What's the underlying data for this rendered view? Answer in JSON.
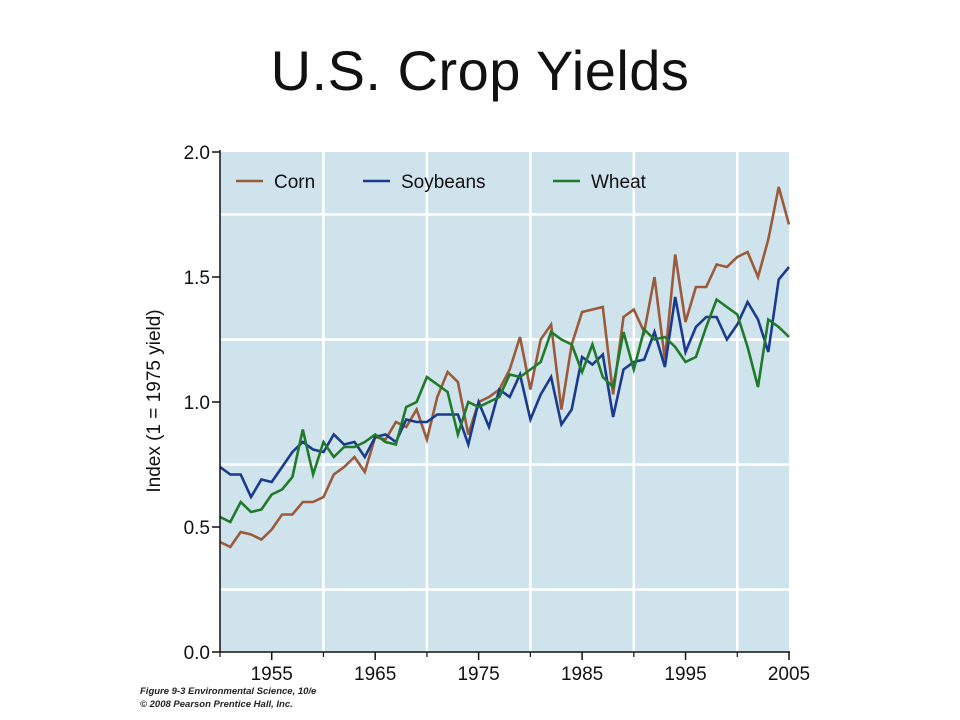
{
  "slide": {
    "title": "U.S. Crop Yields",
    "caption_line1": "Figure 9-3  Environmental Science, 10/e",
    "caption_line2": "© 2008 Pearson Prentice Hall, Inc."
  },
  "colors": {
    "plot_background": "#cfe3ec",
    "grid": "#ffffff",
    "corn": "#9b5a3a",
    "soybeans": "#1a3a8c",
    "wheat": "#1f7a2a"
  },
  "chart_data": {
    "type": "line",
    "title": "",
    "xlabel": "",
    "ylabel": "Index (1 = 1975 yield)",
    "xlim": [
      1950,
      2005
    ],
    "ylim": [
      0,
      2.0
    ],
    "xticks": [
      1955,
      1965,
      1975,
      1985,
      1995,
      2005
    ],
    "xtick_labels": [
      "1955",
      "1965",
      "1975",
      "1985",
      "1995",
      "2005"
    ],
    "yticks": [
      0,
      0.5,
      1.0,
      1.5,
      2.0
    ],
    "ytick_labels": [
      "0.0",
      "0.5",
      "1.0",
      "1.5",
      "2.0"
    ],
    "grid": true,
    "legend_position": "top",
    "x": [
      1950,
      1951,
      1952,
      1953,
      1954,
      1955,
      1956,
      1957,
      1958,
      1959,
      1960,
      1961,
      1962,
      1963,
      1964,
      1965,
      1966,
      1967,
      1968,
      1969,
      1970,
      1971,
      1972,
      1973,
      1974,
      1975,
      1976,
      1977,
      1978,
      1979,
      1980,
      1981,
      1982,
      1983,
      1984,
      1985,
      1986,
      1987,
      1988,
      1989,
      1990,
      1991,
      1992,
      1993,
      1994,
      1995,
      1996,
      1997,
      1998,
      1999,
      2000,
      2001,
      2002,
      2003,
      2004,
      2005
    ],
    "series": [
      {
        "name": "Corn",
        "values": [
          0.44,
          0.42,
          0.48,
          0.47,
          0.45,
          0.49,
          0.55,
          0.55,
          0.6,
          0.6,
          0.62,
          0.71,
          0.74,
          0.78,
          0.72,
          0.86,
          0.85,
          0.92,
          0.9,
          0.97,
          0.85,
          1.02,
          1.12,
          1.08,
          0.87,
          1.0,
          1.02,
          1.05,
          1.13,
          1.26,
          1.05,
          1.25,
          1.31,
          0.97,
          1.23,
          1.36,
          1.37,
          1.38,
          1.03,
          1.34,
          1.37,
          1.28,
          1.5,
          1.17,
          1.59,
          1.32,
          1.46,
          1.46,
          1.55,
          1.54,
          1.58,
          1.6,
          1.5,
          1.65,
          1.86,
          1.71
        ]
      },
      {
        "name": "Soybeans",
        "values": [
          0.74,
          0.71,
          0.71,
          0.62,
          0.69,
          0.68,
          0.74,
          0.8,
          0.84,
          0.81,
          0.8,
          0.87,
          0.83,
          0.84,
          0.78,
          0.86,
          0.87,
          0.84,
          0.93,
          0.92,
          0.92,
          0.95,
          0.95,
          0.95,
          0.83,
          1.0,
          0.9,
          1.05,
          1.02,
          1.11,
          0.93,
          1.03,
          1.1,
          0.91,
          0.97,
          1.18,
          1.15,
          1.19,
          0.94,
          1.13,
          1.16,
          1.17,
          1.28,
          1.14,
          1.42,
          1.2,
          1.3,
          1.34,
          1.34,
          1.25,
          1.31,
          1.4,
          1.33,
          1.2,
          1.49,
          1.54
        ]
      },
      {
        "name": "Wheat",
        "values": [
          0.54,
          0.52,
          0.6,
          0.56,
          0.57,
          0.63,
          0.65,
          0.7,
          0.89,
          0.71,
          0.84,
          0.78,
          0.82,
          0.82,
          0.84,
          0.87,
          0.84,
          0.83,
          0.98,
          1.0,
          1.1,
          1.07,
          1.04,
          0.87,
          1.0,
          0.98,
          1.0,
          1.02,
          1.11,
          1.1,
          1.13,
          1.16,
          1.28,
          1.25,
          1.23,
          1.12,
          1.23,
          1.1,
          1.06,
          1.28,
          1.13,
          1.29,
          1.25,
          1.26,
          1.22,
          1.16,
          1.18,
          1.3,
          1.41,
          1.38,
          1.35,
          1.22,
          1.06,
          1.33,
          1.3,
          1.26
        ]
      }
    ]
  }
}
